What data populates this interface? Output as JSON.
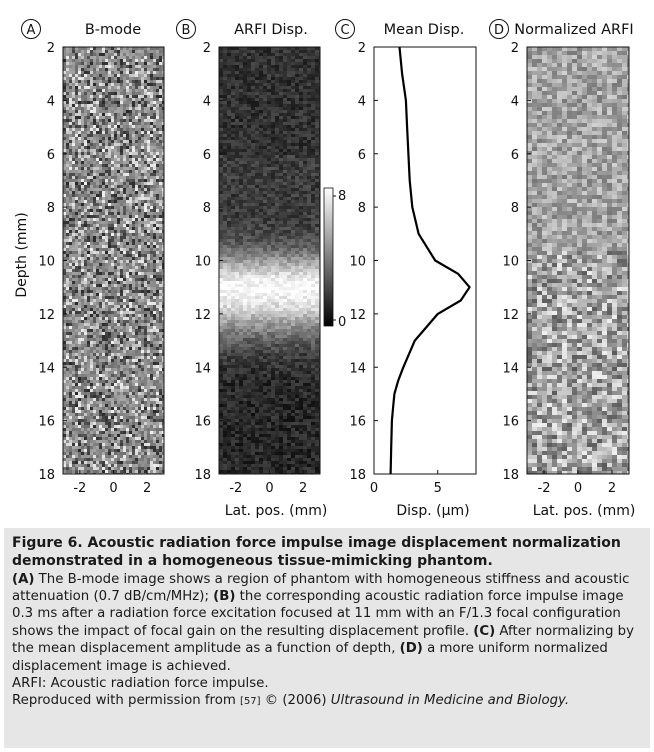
{
  "figure": {
    "panels": [
      {
        "letter": "A",
        "title": "B-mode"
      },
      {
        "letter": "B",
        "title": "ARFI Disp."
      },
      {
        "letter": "C",
        "title": "Mean Disp."
      },
      {
        "letter": "D",
        "title": "Normalized ARFI"
      }
    ],
    "y_axis_label": "Depth (mm)",
    "lat_axis_label": "Lat. pos. (mm)",
    "disp_axis_label": "Disp. (µm)",
    "colorbar_ticks": [
      "8",
      "0"
    ],
    "colors": {
      "ink": "#111111",
      "caption_bg": "#e6e6e6"
    }
  },
  "chart_data": [
    {
      "type": "heatmap",
      "title": "B-mode",
      "xlabel": "",
      "ylabel": "Depth (mm)",
      "xlim": [
        -3,
        3
      ],
      "ylim": [
        18,
        2
      ],
      "xticks": [
        -2,
        0,
        2
      ],
      "yticks": [
        2,
        4,
        6,
        8,
        10,
        12,
        14,
        16,
        18
      ],
      "colormap": "gray",
      "pattern": "uniform speckle"
    },
    {
      "type": "heatmap",
      "title": "ARFI Disp.",
      "xlabel": "Lat. pos. (mm)",
      "ylabel": "",
      "xlim": [
        -3,
        3
      ],
      "ylim": [
        18,
        2
      ],
      "xticks": [
        -2,
        0,
        2
      ],
      "yticks": [
        2,
        4,
        6,
        8,
        10,
        12,
        14,
        16,
        18
      ],
      "colormap": "gray",
      "colorbar_range": [
        0,
        8
      ],
      "colorbar_ticks": [
        0,
        8
      ],
      "pattern": "bright band centered near 11 mm depth"
    },
    {
      "type": "line",
      "title": "Mean Disp.",
      "xlabel": "Disp. (µm)",
      "ylabel": "",
      "xlim": [
        0,
        8
      ],
      "ylim": [
        18,
        2
      ],
      "xticks": [
        0,
        5
      ],
      "yticks": [
        2,
        4,
        6,
        8,
        10,
        12,
        14,
        16,
        18
      ],
      "series": [
        {
          "x": [
            2.0,
            2.2,
            2.5,
            2.6,
            2.7,
            2.8,
            3.0,
            3.5,
            4.8,
            6.6,
            7.5,
            6.8,
            5.0,
            3.2,
            2.3,
            1.9,
            1.6,
            1.5,
            1.4,
            1.35,
            1.3
          ],
          "y": [
            2,
            3,
            4,
            5,
            6,
            7,
            8,
            9,
            10,
            10.5,
            11,
            11.5,
            12,
            13,
            14,
            14.5,
            15,
            15.5,
            16,
            17,
            18
          ]
        }
      ]
    },
    {
      "type": "heatmap",
      "title": "Normalized ARFI",
      "xlabel": "Lat. pos. (mm)",
      "ylabel": "",
      "xlim": [
        -3,
        3
      ],
      "ylim": [
        18,
        2
      ],
      "xticks": [
        -2,
        0,
        2
      ],
      "yticks": [
        2,
        4,
        6,
        8,
        10,
        12,
        14,
        16,
        18
      ],
      "colormap": "gray",
      "pattern": "near-uniform gray"
    }
  ],
  "caption": {
    "title": "Figure 6. Acoustic radiation force impulse image displacement normalization demonstrated in a homogeneous tissue-mimicking phantom.",
    "a_label": "(A)",
    "a_text": " The B-mode image shows a region of phantom with homogeneous stiffness and acoustic attenuation (0.7 dB/cm/MHz); ",
    "b_label": "(B)",
    "b_text": " the corresponding acoustic radiation force impulse image 0.3 ms after a radiation force excitation focused at 11 mm with an F/1.3 focal configuration shows the impact of focal gain on the resulting displacement profile. ",
    "c_label": "(C)",
    "c_text": " After normalizing by the mean displacement amplitude as a function of depth, ",
    "d_label": "(D)",
    "d_text": " a more uniform normalized displacement image is achieved.",
    "abbrev": "ARFI: Acoustic radiation force impulse.",
    "repro_prefix": "Reproduced with permission from ",
    "ref": "[57]",
    "repro_mid": " © (2006) ",
    "journal": "Ultrasound in Medicine and Biology."
  }
}
